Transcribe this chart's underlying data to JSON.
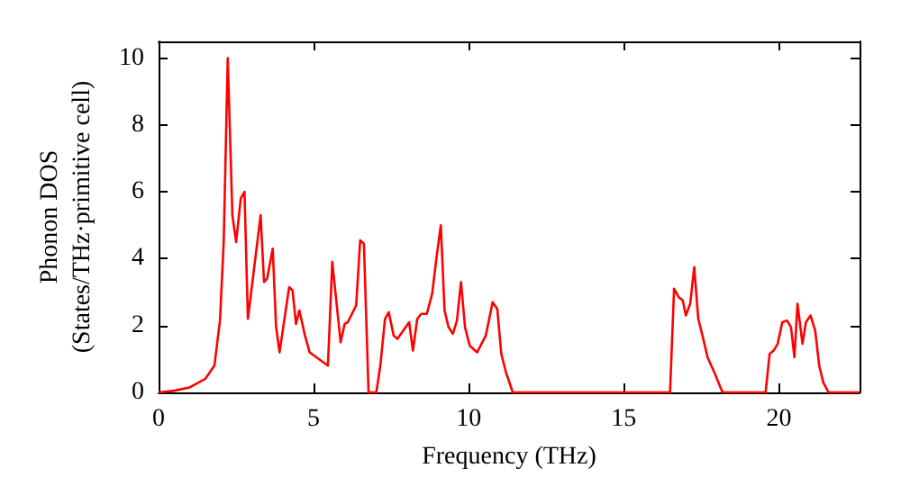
{
  "chart_data": {
    "type": "line",
    "xlabel": "Frequency (THz)",
    "ylabel": "Phonon DOS\n(States/THz·primitive cell)",
    "xlim": [
      0,
      22.6
    ],
    "ylim": [
      0,
      10.5
    ],
    "xticks": [
      0,
      5,
      10,
      15,
      20
    ],
    "yticks": [
      0,
      2,
      4,
      6,
      8,
      10
    ],
    "grid": false,
    "marker": "none",
    "line_style": "solid",
    "series": [
      {
        "color": "#ff0000",
        "x": [
          0,
          0.5,
          1,
          1.5,
          1.8,
          1.98,
          2.1,
          2.23,
          2.38,
          2.5,
          2.65,
          2.77,
          2.88,
          3.29,
          3.4,
          3.5,
          3.68,
          3.79,
          3.9,
          4.21,
          4.32,
          4.43,
          4.54,
          4.72,
          4.87,
          5.46,
          5.6,
          5.87,
          6.0,
          6.1,
          6.37,
          6.5,
          6.62,
          6.77,
          7.02,
          7.15,
          7.3,
          7.42,
          7.58,
          7.7,
          7.85,
          8.08,
          8.2,
          8.34,
          8.47,
          8.65,
          8.82,
          8.97,
          9.1,
          9.22,
          9.35,
          9.49,
          9.62,
          9.75,
          9.88,
          10.03,
          10.27,
          10.55,
          10.77,
          10.92,
          11.05,
          11.2,
          11.42,
          16.49,
          16.62,
          16.77,
          16.9,
          17.0,
          17.14,
          17.27,
          17.4,
          17.51,
          17.7,
          17.94,
          18.16,
          18.2,
          19.57,
          19.7,
          19.83,
          19.96,
          20.11,
          20.26,
          20.39,
          20.5,
          20.6,
          20.76,
          20.87,
          21.02,
          21.17,
          21.3,
          21.43,
          21.6,
          22.6
        ],
        "values": [
          0,
          0.05,
          0.15,
          0.4,
          0.8,
          2.15,
          4.5,
          10.0,
          5.3,
          4.5,
          5.8,
          6.0,
          2.2,
          5.3,
          3.3,
          3.4,
          4.3,
          1.95,
          1.2,
          3.15,
          3.05,
          2.05,
          2.45,
          1.7,
          1.2,
          0.8,
          3.9,
          1.5,
          2.05,
          2.1,
          2.6,
          4.55,
          4.45,
          0,
          0,
          0.8,
          2.2,
          2.4,
          1.7,
          1.6,
          1.8,
          2.1,
          1.25,
          2.2,
          2.35,
          2.35,
          2.95,
          4.1,
          5.0,
          2.45,
          1.95,
          1.75,
          2.15,
          3.3,
          1.95,
          1.4,
          1.2,
          1.7,
          2.7,
          2.5,
          1.15,
          0.6,
          0,
          0,
          3.1,
          2.85,
          2.75,
          2.3,
          2.65,
          3.75,
          2.2,
          1.8,
          1.05,
          0.55,
          0.05,
          0,
          0,
          1.15,
          1.25,
          1.45,
          2.1,
          2.15,
          1.95,
          1.05,
          2.65,
          1.45,
          2.1,
          2.3,
          1.85,
          0.8,
          0.3,
          0,
          0
        ]
      }
    ]
  }
}
